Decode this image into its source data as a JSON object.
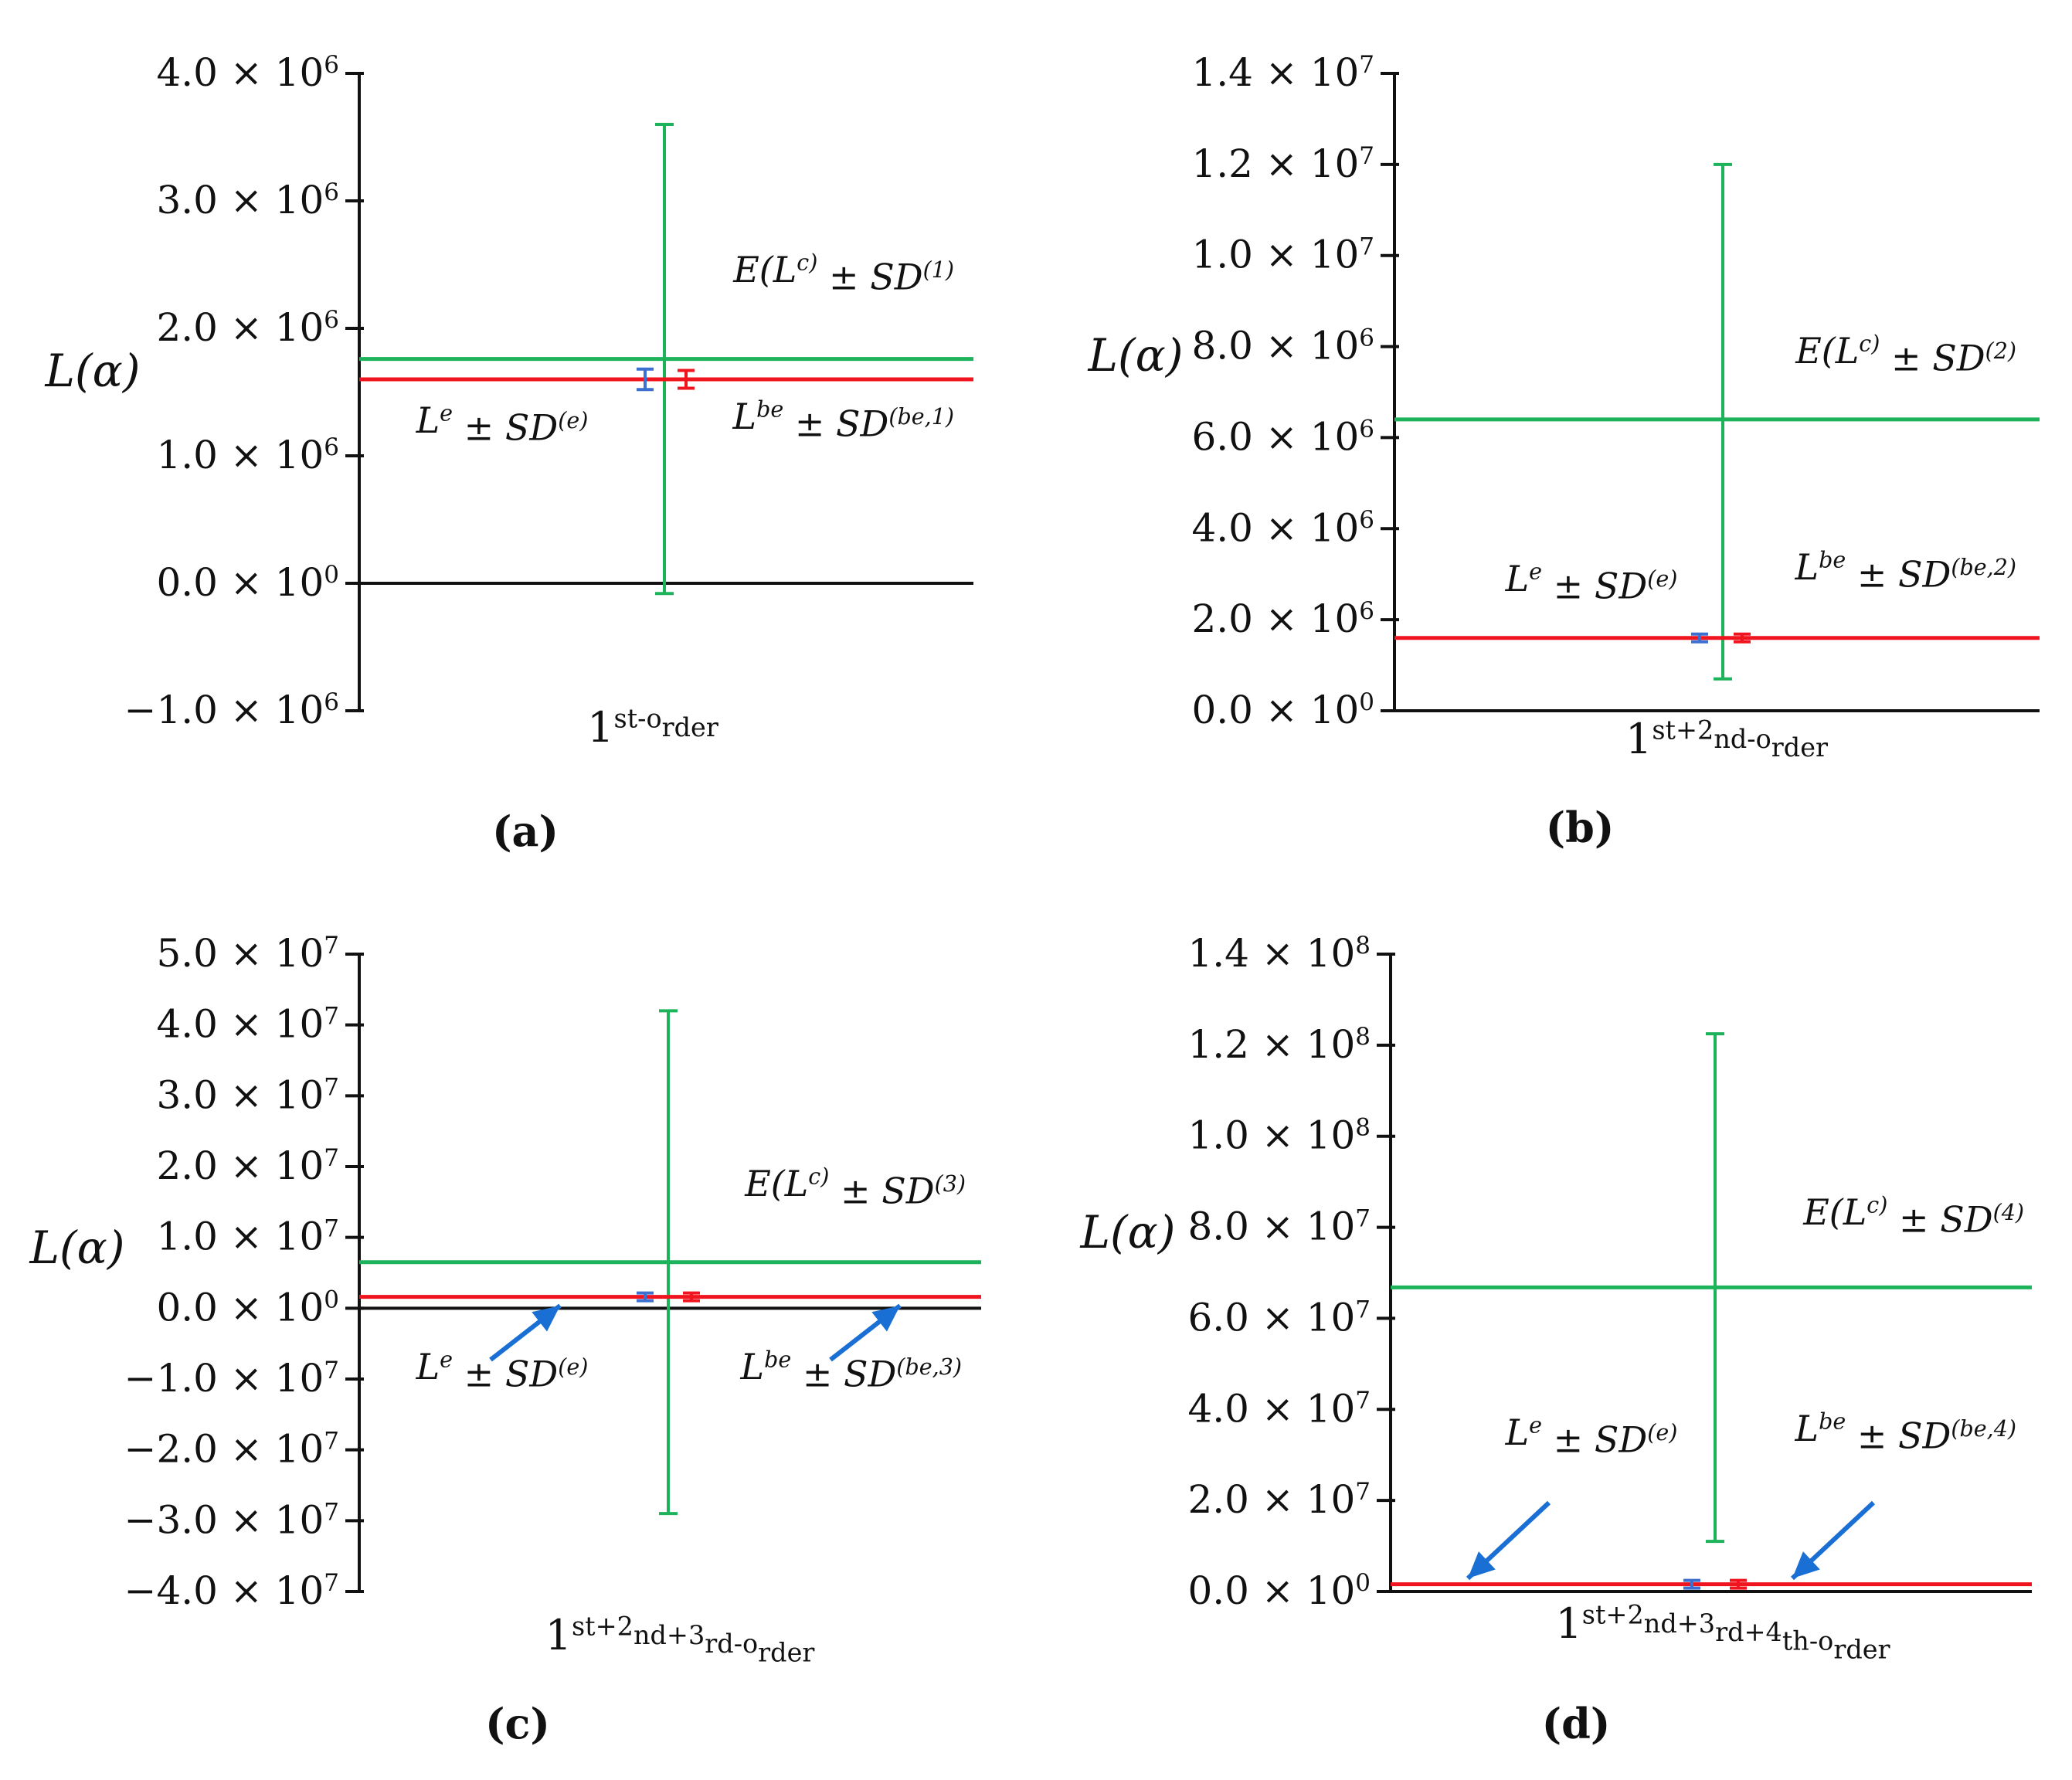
{
  "colors": {
    "computed": "#1db35b",
    "bayesian": "#f0141e",
    "experimental": "#3b6fd0",
    "arrow": "#1a6fd4",
    "axis": "#111111"
  },
  "chart_data": [
    {
      "type": "errorbar",
      "panel_label": "(a)",
      "ylabel": "L(α)",
      "xlabel": "1st-order",
      "ylim": [
        -1000000,
        4000000
      ],
      "y_ticks": [
        -1000000,
        0,
        1000000,
        2000000,
        3000000,
        4000000
      ],
      "tick_labels": [
        "−1.0 × 10^6",
        "0.0 × 10^0",
        "1.0 × 10^6",
        "2.0 × 10^6",
        "3.0 × 10^6",
        "4.0 × 10^6"
      ],
      "series": [
        {
          "name": "E(L^c) ± SD^(1)",
          "color": "computed",
          "mean": 1760000,
          "low": -80000,
          "high": 3600000
        },
        {
          "name": "L^e ± SD^(e)",
          "color": "experimental",
          "mean": 1600000,
          "low": 1520000,
          "high": 1680000
        },
        {
          "name": "L^be ± SD^(be,1)",
          "color": "bayesian",
          "mean": 1600000,
          "low": 1530000,
          "high": 1670000
        }
      ],
      "zero_line": true,
      "arrows": false
    },
    {
      "type": "errorbar",
      "panel_label": "(b)",
      "ylabel": "L(α)",
      "xlabel": "1st+2nd-order",
      "ylim": [
        0,
        14000000
      ],
      "y_ticks": [
        0,
        2000000,
        4000000,
        6000000,
        8000000,
        10000000,
        12000000,
        14000000
      ],
      "tick_labels": [
        "0.0 × 10^0",
        "2.0 × 10^6",
        "4.0 × 10^6",
        "6.0 × 10^6",
        "8.0 × 10^6",
        "1.0 × 10^7",
        "1.2 × 10^7",
        "1.4 × 10^7"
      ],
      "series": [
        {
          "name": "E(L^c) ± SD^(2)",
          "color": "computed",
          "mean": 6400000,
          "low": 700000,
          "high": 12000000
        },
        {
          "name": "L^e ± SD^(e)",
          "color": "experimental",
          "mean": 1600000,
          "low": 1520000,
          "high": 1680000
        },
        {
          "name": "L^be ± SD^(be,2)",
          "color": "bayesian",
          "mean": 1600000,
          "low": 1530000,
          "high": 1670000
        }
      ],
      "zero_line": false,
      "arrows": false
    },
    {
      "type": "errorbar",
      "panel_label": "(c)",
      "ylabel": "L(α)",
      "xlabel": "1st+2nd+3rd-order",
      "ylim": [
        -40000000,
        50000000
      ],
      "y_ticks": [
        -40000000,
        -30000000,
        -20000000,
        -10000000,
        0,
        10000000,
        20000000,
        30000000,
        40000000,
        50000000
      ],
      "tick_labels": [
        "−4.0 × 10^7",
        "−3.0 × 10^7",
        "−2.0 × 10^7",
        "−1.0 × 10^7",
        "0.0 × 10^0",
        "1.0 × 10^7",
        "2.0 × 10^7",
        "3.0 × 10^7",
        "4.0 × 10^7",
        "5.0 × 10^7"
      ],
      "series": [
        {
          "name": "E(L^c) ± SD^(3)",
          "color": "computed",
          "mean": 6500000,
          "low": -29000000,
          "high": 42000000
        },
        {
          "name": "L^e ± SD^(e)",
          "color": "experimental",
          "mean": 1600000,
          "low": 1520000,
          "high": 1680000
        },
        {
          "name": "L^be ± SD^(be,3)",
          "color": "bayesian",
          "mean": 1600000,
          "low": 1530000,
          "high": 1670000
        }
      ],
      "zero_line": true,
      "arrows": true
    },
    {
      "type": "errorbar",
      "panel_label": "(d)",
      "ylabel": "L(α)",
      "xlabel": "1st+2nd+3rd+4th-order",
      "ylim": [
        0,
        140000000
      ],
      "y_ticks": [
        0,
        20000000,
        40000000,
        60000000,
        80000000,
        100000000,
        120000000,
        140000000
      ],
      "tick_labels": [
        "0.0 × 10^0",
        "2.0 × 10^7",
        "4.0 × 10^7",
        "6.0 × 10^7",
        "8.0 × 10^7",
        "1.0 × 10^8",
        "1.2 × 10^8",
        "1.4 × 10^8"
      ],
      "series": [
        {
          "name": "E(L^c) ± SD^(4)",
          "color": "computed",
          "mean": 66800000,
          "low": 11000000,
          "high": 122500000
        },
        {
          "name": "L^e ± SD^(e)",
          "color": "experimental",
          "mean": 1600000,
          "low": 1520000,
          "high": 1680000
        },
        {
          "name": "L^be ± SD^(be,4)",
          "color": "bayesian",
          "mean": 1600000,
          "low": 1530000,
          "high": 1670000
        }
      ],
      "zero_line": false,
      "arrows": true
    }
  ]
}
